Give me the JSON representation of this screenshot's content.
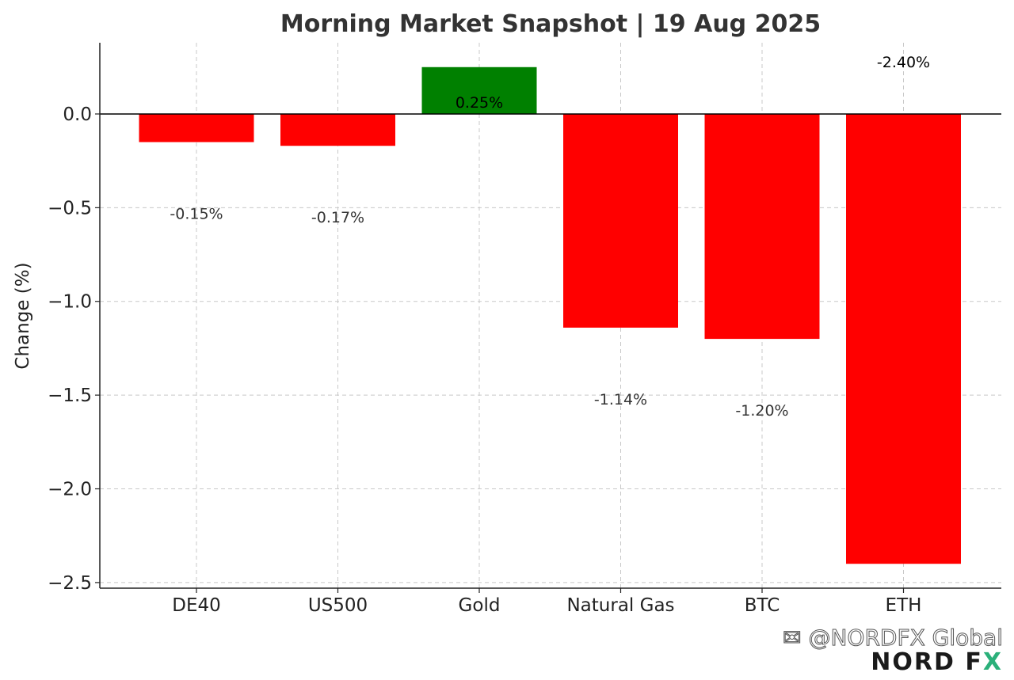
{
  "chart_data": {
    "type": "bar",
    "title": "Morning Market Snapshot | 19 Aug 2025",
    "xlabel": "",
    "ylabel": "Change (%)",
    "categories": [
      "DE40",
      "US500",
      "Gold",
      "Natural Gas",
      "BTC",
      "ETH"
    ],
    "values": [
      -0.15,
      -0.17,
      0.25,
      -1.14,
      -1.2,
      -2.4
    ],
    "data_labels": [
      "-0.15%",
      "-0.17%",
      "0.25%",
      "-1.14%",
      "-1.20%",
      "-2.40%"
    ],
    "ylim": [
      -2.53,
      0.38
    ],
    "yticks": [
      0.0,
      -0.5,
      -1.0,
      -1.5,
      -2.0,
      -2.5
    ],
    "ytick_labels": [
      "0.0",
      "−0.5",
      "−1.0",
      "−1.5",
      "−2.0",
      "−2.5"
    ],
    "grid": true,
    "colors": {
      "positive": "#008000",
      "negative": "#ff0000",
      "zero_line": "#000000"
    }
  },
  "watermark": {
    "handle": "@NORDFX Global",
    "icon": "social-app-icon",
    "logo_part1": "NORD F",
    "logo_part2": "X"
  }
}
